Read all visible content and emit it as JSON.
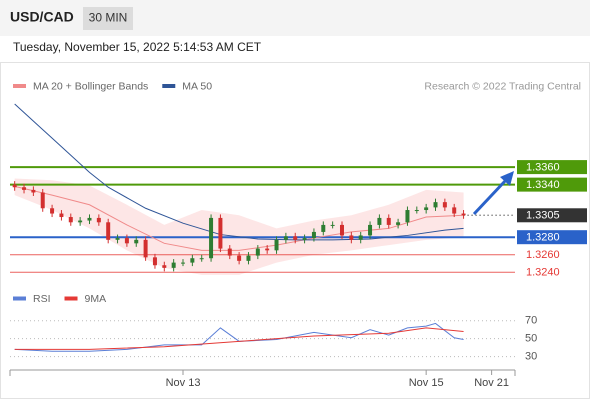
{
  "header": {
    "symbol": "USD/CAD",
    "interval": "30 MIN",
    "timestamp": "Tuesday, November 15, 2022 5:14:53 AM CET"
  },
  "chart_data": [
    {
      "type": "candlestick",
      "credit": "Research © 2022 Trading Central",
      "categories": [
        null,
        null,
        null,
        null,
        null,
        null,
        null,
        null,
        null,
        null,
        null,
        null,
        null,
        null,
        null,
        null,
        null,
        null,
        "Nov 13",
        null,
        null,
        null,
        null,
        null,
        null,
        null,
        null,
        null,
        null,
        null,
        null,
        null,
        null,
        null,
        null,
        null,
        null,
        null,
        null,
        null,
        null,
        null,
        null,
        null,
        "Nov 15",
        null,
        null,
        null,
        null,
        null,
        null,
        "Nov 21",
        null,
        null
      ],
      "open": [
        1.334,
        1.3337,
        1.3334,
        1.3331,
        1.3313,
        1.3307,
        1.3303,
        1.3297,
        1.3299,
        1.3302,
        1.3297,
        1.3277,
        1.3279,
        1.3273,
        1.3277,
        1.3257,
        1.3248,
        1.3245,
        1.3251,
        1.3251,
        1.3256,
        1.3256,
        1.3302,
        1.3267,
        1.3259,
        1.3253,
        1.3259,
        1.3267,
        1.3265,
        1.3277,
        1.3281,
        1.3277,
        1.3279,
        1.3286,
        1.3294,
        1.3294,
        1.3282,
        1.3277,
        1.3282,
        1.3294,
        1.3302,
        1.3294,
        1.3297,
        1.3311,
        1.3311,
        1.3314,
        1.332,
        1.3314,
        1.3307,
        null,
        null,
        null,
        null,
        null
      ],
      "high": [
        1.3344,
        1.3341,
        1.3338,
        1.3335,
        1.3317,
        1.3311,
        1.3307,
        1.3303,
        1.3306,
        1.3306,
        1.3301,
        1.3283,
        1.3283,
        1.3281,
        1.3281,
        1.3261,
        1.3252,
        1.3255,
        1.3255,
        1.326,
        1.326,
        1.3306,
        1.3306,
        1.3271,
        1.3263,
        1.3263,
        1.3271,
        1.3271,
        1.3281,
        1.3285,
        1.3285,
        1.3283,
        1.329,
        1.3298,
        1.3298,
        1.3298,
        1.3286,
        1.3286,
        1.3298,
        1.3306,
        1.3306,
        1.3301,
        1.3315,
        1.3315,
        1.3318,
        1.3324,
        1.3324,
        1.3318,
        1.3311,
        null,
        null,
        null,
        null,
        null
      ],
      "low": [
        1.3333,
        1.333,
        1.3327,
        1.3309,
        1.3303,
        1.3299,
        1.3293,
        1.3293,
        1.3295,
        1.3293,
        1.3273,
        1.3273,
        1.3269,
        1.3269,
        1.3253,
        1.3244,
        1.3241,
        1.3241,
        1.3247,
        1.3247,
        1.3252,
        1.3252,
        1.3263,
        1.3255,
        1.3249,
        1.3249,
        1.3255,
        1.3261,
        1.3261,
        1.3273,
        1.3273,
        1.3273,
        1.3275,
        1.3282,
        1.329,
        1.3278,
        1.3273,
        1.3273,
        1.3278,
        1.329,
        1.329,
        1.329,
        1.3293,
        1.3307,
        1.3307,
        1.331,
        1.331,
        1.3303,
        1.3301,
        null,
        null,
        null,
        null,
        null
      ],
      "close": [
        1.3337,
        1.3334,
        1.3331,
        1.3313,
        1.3307,
        1.3303,
        1.3297,
        1.3299,
        1.3302,
        1.3297,
        1.3277,
        1.3279,
        1.3273,
        1.3277,
        1.3257,
        1.3248,
        1.3245,
        1.3251,
        1.3251,
        1.3256,
        1.3256,
        1.3302,
        1.3267,
        1.3259,
        1.3253,
        1.3259,
        1.3267,
        1.3265,
        1.3277,
        1.3281,
        1.3277,
        1.3279,
        1.3286,
        1.3294,
        1.3294,
        1.3282,
        1.3277,
        1.3282,
        1.3294,
        1.3302,
        1.3294,
        1.3297,
        1.3311,
        1.3311,
        1.3314,
        1.332,
        1.3314,
        1.3307,
        1.3305,
        null,
        null,
        null,
        null,
        null
      ],
      "up_color": "#2e7d32",
      "down_color": "#d32f2f",
      "series": [
        {
          "name": "MA 20 + Bollinger Bands",
          "color": "#f08a8a",
          "band_color": "#fde0e0",
          "x": [
            0,
            4,
            8,
            12,
            16,
            20,
            24,
            28,
            32,
            36,
            40,
            44,
            48
          ],
          "values": [
            1.3338,
            1.3328,
            1.3317,
            1.3294,
            1.3273,
            1.3265,
            1.3265,
            1.3271,
            1.3279,
            1.3286,
            1.329,
            1.3303,
            1.3305
          ],
          "upper": [
            1.3347,
            1.3345,
            1.3339,
            1.3317,
            1.3294,
            1.3311,
            1.3305,
            1.329,
            1.3299,
            1.3305,
            1.3317,
            1.3334,
            1.3331
          ],
          "lower": [
            1.3328,
            1.3311,
            1.329,
            1.3265,
            1.3245,
            1.3237,
            1.3237,
            1.3251,
            1.326,
            1.3265,
            1.3271,
            1.3277,
            1.328
          ]
        },
        {
          "name": "MA 50",
          "color": "#2f5597",
          "x": [
            0,
            4,
            8,
            10,
            14,
            18,
            22,
            26,
            30,
            34,
            38,
            42,
            46,
            48
          ],
          "values": [
            1.3432,
            1.3393,
            1.3354,
            1.3337,
            1.3313,
            1.3296,
            1.3283,
            1.3278,
            1.3277,
            1.3277,
            1.3278,
            1.3282,
            1.3288,
            1.329
          ]
        }
      ],
      "levels": [
        {
          "value": 1.336,
          "label": "1.3360",
          "color": "#4f9a0a",
          "boxed": true
        },
        {
          "value": 1.334,
          "label": "1.3340",
          "color": "#4f9a0a",
          "boxed": true
        },
        {
          "value": 1.3305,
          "color": "#333333",
          "boxed": true,
          "current": true
        },
        {
          "value": 1.328,
          "label": "1.3280",
          "color": "#2a62c9",
          "boxed": true
        },
        {
          "value": 1.326,
          "label": "1.3260",
          "color": "#e53935",
          "boxed": false
        },
        {
          "value": 1.324,
          "label": "1.3240",
          "color": "#e53935",
          "boxed": false
        }
      ],
      "ylim": [
        1.323,
        1.344
      ]
    },
    {
      "type": "line",
      "series": [
        {
          "name": "RSI",
          "color": "#5b7fd6",
          "x": [
            0,
            4,
            8,
            12,
            16,
            20,
            22,
            24,
            28,
            32,
            36,
            38,
            40,
            42,
            44,
            45,
            47,
            48
          ],
          "values": [
            38,
            36,
            36,
            38,
            43,
            43,
            62,
            47,
            49,
            57,
            51,
            60,
            54,
            62,
            64,
            67,
            51,
            49
          ]
        },
        {
          "name": "9MA",
          "color": "#e53935",
          "x": [
            0,
            8,
            16,
            24,
            32,
            40,
            44,
            48
          ],
          "values": [
            38,
            38,
            41,
            47,
            53,
            56,
            62,
            58
          ]
        }
      ],
      "ylim": [
        15,
        82
      ],
      "yticks": [
        30,
        50,
        70
      ],
      "grid": true
    }
  ]
}
